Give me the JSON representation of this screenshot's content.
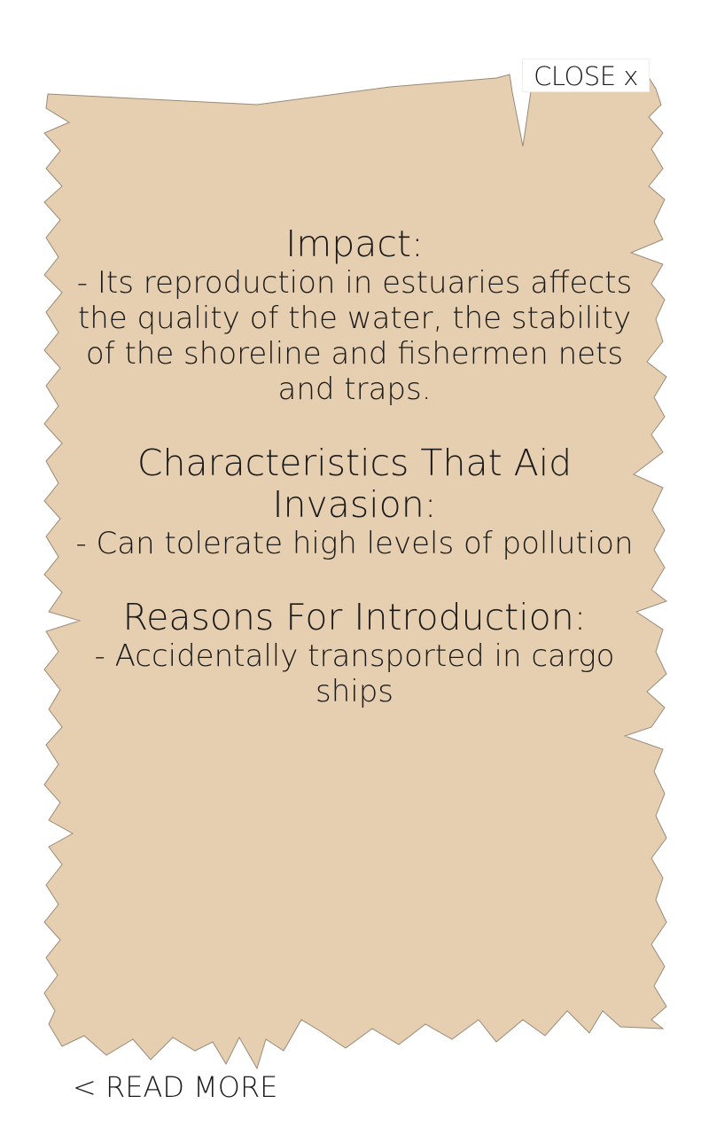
{
  "colors": {
    "parchment": "#e6cfb0",
    "parchment_edge": "#9a8a78",
    "text": "#1a1a1a",
    "background": "#ffffff"
  },
  "header": {
    "close_label": "CLOSE x"
  },
  "sections": [
    {
      "heading": "Impact:",
      "body": "- Its reproduction in estuaries affects the quality of the water, the stability of the shoreline and fishermen nets and traps."
    },
    {
      "heading": "Characteristics That Aid Invasion:",
      "body": "- Can tolerate high levels of pollution"
    },
    {
      "heading": "Reasons For Introduction:",
      "body": "-  Accidentally transported in cargo ships"
    }
  ],
  "footer": {
    "read_more_label": "< READ MORE"
  }
}
